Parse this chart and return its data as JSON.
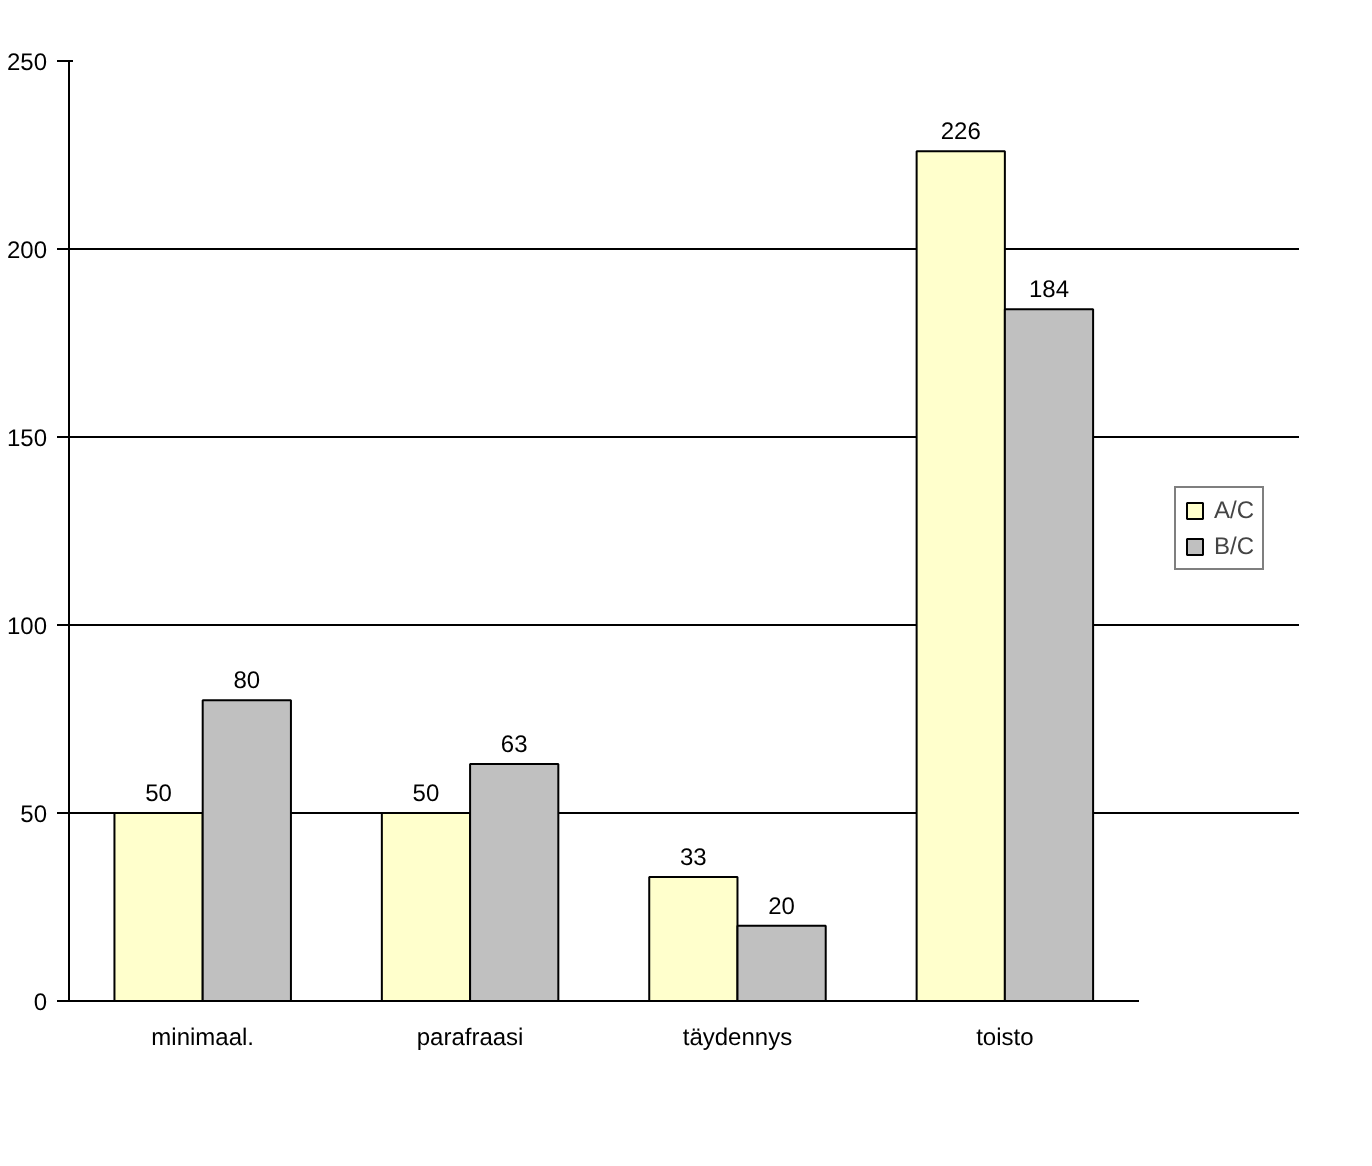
{
  "chart_data": {
    "type": "bar",
    "categories": [
      "minimaal.",
      "parafraasi",
      "täydennys",
      "toisto"
    ],
    "series": [
      {
        "name": "A/C",
        "color": "#ffffcc",
        "values": [
          50,
          50,
          33,
          226
        ]
      },
      {
        "name": "B/C",
        "color": "#c0c0c0",
        "values": [
          80,
          63,
          20,
          184
        ]
      }
    ],
    "ylim": [
      0,
      250
    ],
    "yticks": [
      0,
      50,
      100,
      150,
      200,
      250
    ],
    "grid": "y",
    "legend": "right",
    "data_labels": true
  }
}
